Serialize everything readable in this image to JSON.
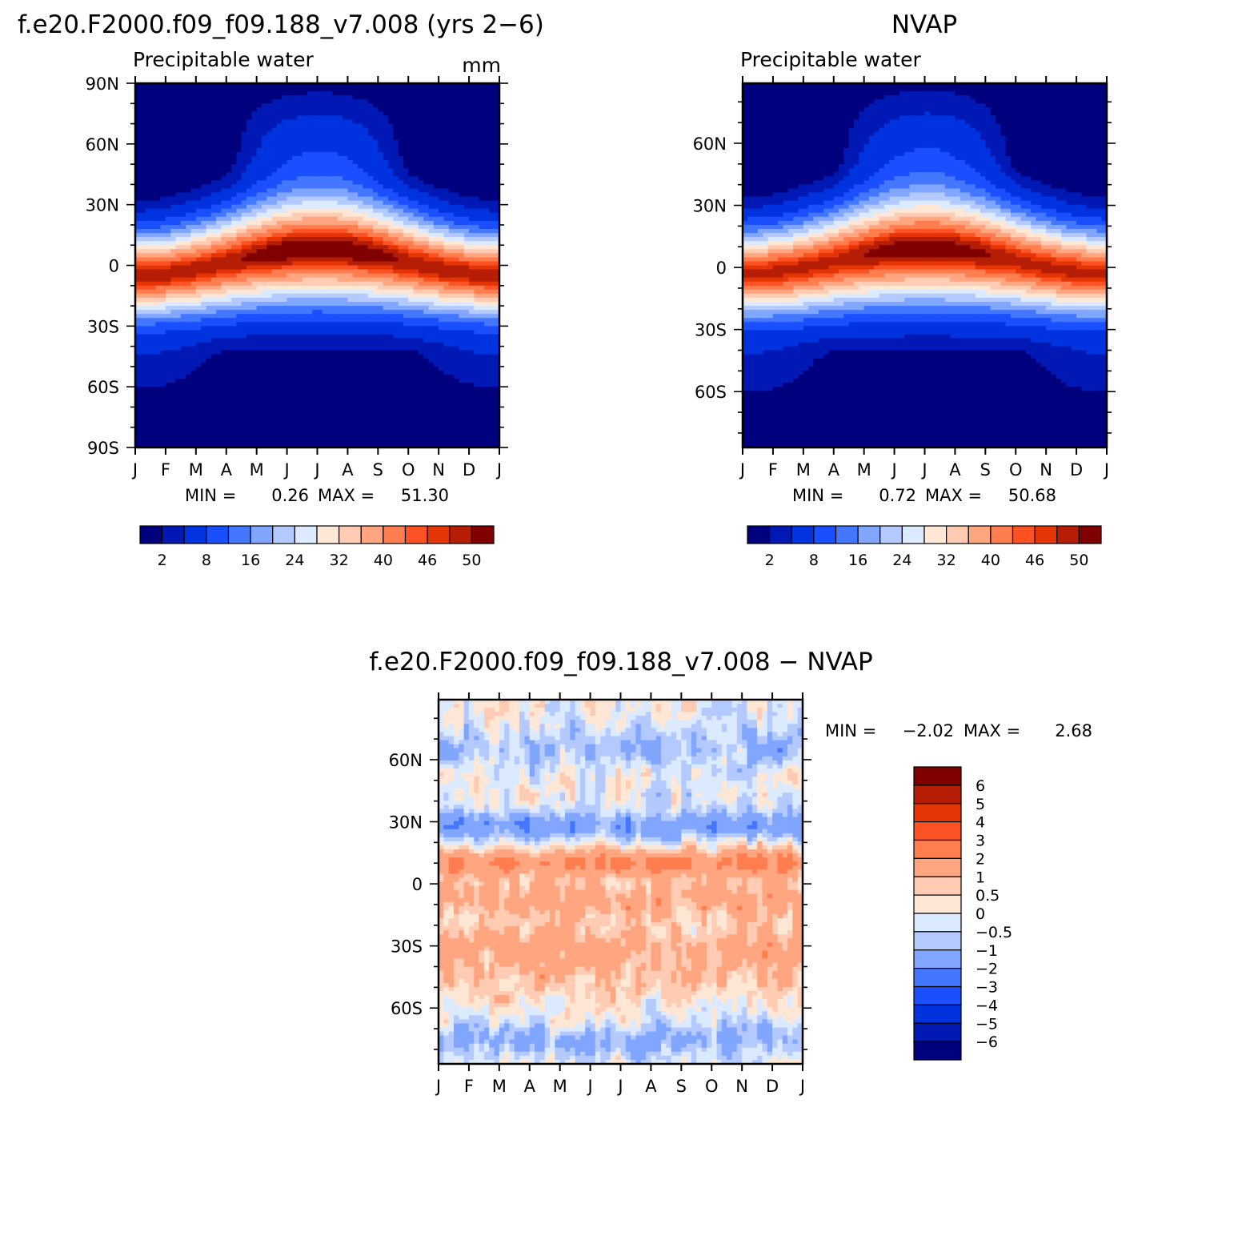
{
  "chart_data": [
    {
      "id": "model",
      "type": "heatmap",
      "title": "f.e20.F2000.f09_f09.188_v7.008 (yrs 2−6)",
      "subtitle": "Precipitable water",
      "units": "mm",
      "x_ticks": [
        "J",
        "F",
        "M",
        "A",
        "M",
        "J",
        "J",
        "A",
        "S",
        "O",
        "N",
        "D",
        "J"
      ],
      "y_ticks": [
        {
          "lat": 90,
          "label": "90N"
        },
        {
          "lat": 60,
          "label": "60N"
        },
        {
          "lat": 30,
          "label": "30N"
        },
        {
          "lat": 0,
          "label": "0"
        },
        {
          "lat": -30,
          "label": "30S"
        },
        {
          "lat": -60,
          "label": "60S"
        },
        {
          "lat": -90,
          "label": "90S"
        }
      ],
      "ylim": [
        -90,
        90
      ],
      "min_label": "MIN =",
      "min_value": "0.26",
      "max_label": "MAX =",
      "max_value": "51.30",
      "itcz_peak": 51.3,
      "itcz_lat_jan": -5,
      "itcz_lat_jul": 8,
      "levels": [
        0,
        2,
        4,
        8,
        12,
        16,
        20,
        24,
        28,
        32,
        36,
        40,
        44,
        46,
        48,
        50,
        100
      ],
      "colorbar_labels": [
        "2",
        "8",
        "16",
        "24",
        "32",
        "40",
        "46",
        "50"
      ],
      "colorbar_label_index": [
        1,
        3,
        5,
        7,
        9,
        11,
        13,
        15
      ]
    },
    {
      "id": "obs",
      "type": "heatmap",
      "title": "NVAP",
      "subtitle": "Precipitable water",
      "units": "",
      "x_ticks": [
        "J",
        "F",
        "M",
        "A",
        "M",
        "J",
        "J",
        "A",
        "S",
        "O",
        "N",
        "D",
        "J"
      ],
      "y_ticks": [
        {
          "lat": 60,
          "label": "60N"
        },
        {
          "lat": 30,
          "label": "30N"
        },
        {
          "lat": 0,
          "label": "0"
        },
        {
          "lat": -30,
          "label": "30S"
        },
        {
          "lat": -60,
          "label": "60S"
        }
      ],
      "ylim": [
        -87,
        89
      ],
      "min_label": "MIN =",
      "min_value": "0.72",
      "max_label": "MAX =",
      "max_value": "50.68",
      "itcz_peak": 50.7,
      "itcz_lat_jan": -3,
      "itcz_lat_jul": 9,
      "levels": [
        0,
        2,
        4,
        8,
        12,
        16,
        20,
        24,
        28,
        32,
        36,
        40,
        44,
        46,
        48,
        50,
        100
      ],
      "colorbar_labels": [
        "2",
        "8",
        "16",
        "24",
        "32",
        "40",
        "46",
        "50"
      ],
      "colorbar_label_index": [
        1,
        3,
        5,
        7,
        9,
        11,
        13,
        15
      ]
    },
    {
      "id": "diff",
      "type": "heatmap",
      "title": "f.e20.F2000.f09_f09.188_v7.008 − NVAP",
      "x_ticks": [
        "J",
        "F",
        "M",
        "A",
        "M",
        "J",
        "J",
        "A",
        "S",
        "O",
        "N",
        "D",
        "J"
      ],
      "y_ticks": [
        {
          "lat": 60,
          "label": "60N"
        },
        {
          "lat": 30,
          "label": "30N"
        },
        {
          "lat": 0,
          "label": "0"
        },
        {
          "lat": -30,
          "label": "30S"
        },
        {
          "lat": -60,
          "label": "60S"
        }
      ],
      "ylim": [
        -87,
        89
      ],
      "min_label": "MIN =",
      "min_value": "−2.02",
      "max_label": "MAX =",
      "max_value": "2.68",
      "diff_levels": [
        -100,
        -6,
        -5,
        -4,
        -3,
        -2,
        -1,
        -0.5,
        0,
        0.5,
        1,
        2,
        3,
        4,
        5,
        6,
        100
      ],
      "colorbar_labels": [
        "6",
        "5",
        "4",
        "3",
        "2",
        "1",
        "0.5",
        "0",
        "−0.5",
        "−1",
        "−2",
        "−3",
        "−4",
        "−5",
        "−6"
      ]
    }
  ],
  "palette": [
    "#00007f",
    "#0019b4",
    "#0033e0",
    "#1a4fff",
    "#4477ff",
    "#80a6ff",
    "#b4caff",
    "#dbeaff",
    "#ffe7d6",
    "#ffcbb3",
    "#ffa680",
    "#ff7d4f",
    "#ff5224",
    "#e63505",
    "#b51e05",
    "#800000"
  ]
}
